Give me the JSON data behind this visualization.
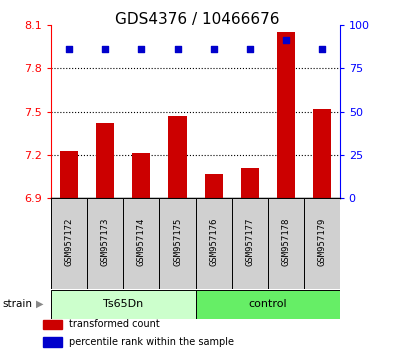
{
  "title": "GDS4376 / 10466676",
  "samples": [
    "GSM957172",
    "GSM957173",
    "GSM957174",
    "GSM957175",
    "GSM957176",
    "GSM957177",
    "GSM957178",
    "GSM957179"
  ],
  "bar_values": [
    7.23,
    7.42,
    7.21,
    7.47,
    7.07,
    7.11,
    8.05,
    7.52
  ],
  "percentile_values": [
    86,
    86,
    86,
    86,
    86,
    86,
    91,
    86
  ],
  "ylim_left": [
    6.9,
    8.1
  ],
  "ylim_right": [
    0,
    100
  ],
  "yticks_left": [
    6.9,
    7.2,
    7.5,
    7.8,
    8.1
  ],
  "yticks_right": [
    0,
    25,
    50,
    75,
    100
  ],
  "bar_color": "#cc0000",
  "percentile_color": "#0000cc",
  "group_labels": [
    "Ts65Dn",
    "control"
  ],
  "group_ranges": [
    [
      0,
      4
    ],
    [
      4,
      8
    ]
  ],
  "group_colors_light": [
    "#ccffcc",
    "#66ee66"
  ],
  "strain_label": "strain",
  "legend_bar_label": "transformed count",
  "legend_pct_label": "percentile rank within the sample",
  "title_fontsize": 11,
  "tick_fontsize": 8,
  "label_fontsize": 8,
  "sample_fontsize": 6.5
}
